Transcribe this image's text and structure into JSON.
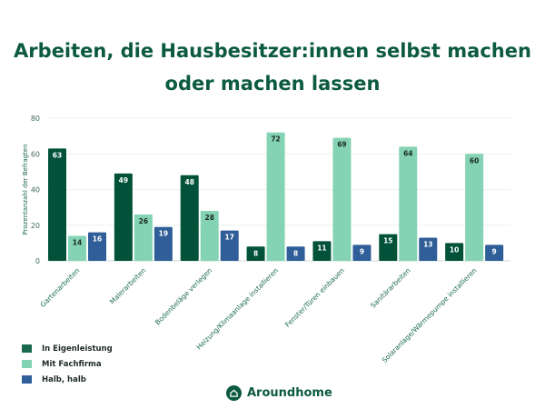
{
  "chart_data": {
    "type": "bar",
    "title": "Arbeiten, die Hausbesitzer:innen selbst machen oder machen lassen",
    "xlabel": "",
    "ylabel": "Prozentanzahl der Befragten",
    "ylim": [
      0,
      80
    ],
    "yticks": [
      0,
      20,
      40,
      60,
      80
    ],
    "grid": true,
    "legend_position": "bottom-left",
    "categories": [
      "Gartenarbeiten",
      "Malerarbeiten",
      "Bodenbeläge verlegen",
      "Heizung/Klimaanlage installieren",
      "Fenster/Türen einbauen",
      "Sanitärarbeiten",
      "Solaranlage/Wärmepumpe installieren"
    ],
    "series": [
      {
        "name": "In Eigenleistung",
        "color": "#02523a",
        "values": [
          63,
          49,
          48,
          8,
          11,
          15,
          10
        ]
      },
      {
        "name": "Mit Fachfirma",
        "color": "#84d3b4",
        "values": [
          14,
          26,
          28,
          72,
          69,
          64,
          60
        ]
      },
      {
        "name": "Halb, halb",
        "color": "#2f5e98",
        "values": [
          16,
          19,
          17,
          8,
          9,
          13,
          9
        ]
      }
    ]
  },
  "brand": {
    "name": "Aroundhome",
    "color": "#0c5a40"
  }
}
